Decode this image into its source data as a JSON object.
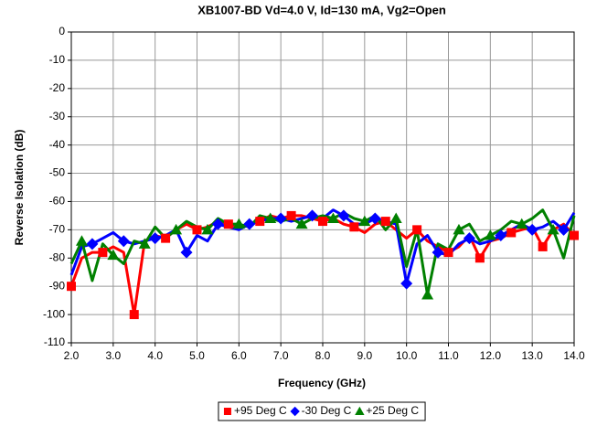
{
  "chart_data": {
    "type": "line",
    "title": "XB1007-BD Vd=4.0 V, Id=130 mA, Vg2=Open",
    "xlabel": "Frequency (GHz)",
    "ylabel": "Reverse Isolation (dB)",
    "x": [
      2.0,
      2.25,
      2.5,
      2.75,
      3.0,
      3.25,
      3.5,
      3.75,
      4.0,
      4.25,
      4.5,
      4.75,
      5.0,
      5.25,
      5.5,
      5.75,
      6.0,
      6.25,
      6.5,
      6.75,
      7.0,
      7.25,
      7.5,
      7.75,
      8.0,
      8.25,
      8.5,
      8.75,
      9.0,
      9.25,
      9.5,
      9.75,
      10.0,
      10.25,
      10.5,
      10.75,
      11.0,
      11.25,
      11.5,
      11.75,
      12.0,
      12.25,
      12.5,
      12.75,
      13.0,
      13.25,
      13.5,
      13.75,
      14.0
    ],
    "series": [
      {
        "name": "+95 Deg C",
        "color": "#ff0000",
        "marker": "square",
        "values": [
          -90,
          -80,
          -78,
          -78,
          -76,
          -78,
          -100,
          -74,
          -72,
          -73,
          -70,
          -68,
          -70,
          -69,
          -67,
          -68,
          -69,
          -68,
          -67,
          -65,
          -66,
          -65,
          -65,
          -66,
          -67,
          -66,
          -68,
          -69,
          -71,
          -68,
          -67,
          -70,
          -73,
          -70,
          -74,
          -76,
          -78,
          -76,
          -72,
          -80,
          -74,
          -73,
          -71,
          -70,
          -69,
          -76,
          -70,
          -68,
          -72
        ]
      },
      {
        "name": "-30 Deg C",
        "color": "#0000ff",
        "marker": "diamond",
        "values": [
          -86,
          -76,
          -75,
          -73,
          -71,
          -74,
          -75,
          -74,
          -73,
          -72,
          -70,
          -78,
          -72,
          -74,
          -68,
          -69,
          -70,
          -68,
          -67,
          -66,
          -66,
          -67,
          -66,
          -65,
          -66,
          -63,
          -65,
          -68,
          -68,
          -66,
          -67,
          -68,
          -89,
          -75,
          -72,
          -78,
          -79,
          -75,
          -73,
          -75,
          -74,
          -72,
          -70,
          -68,
          -70,
          -69,
          -67,
          -70,
          -64
        ]
      },
      {
        "name": "+25 Deg C",
        "color": "#008000",
        "marker": "triangle",
        "values": [
          -82,
          -74,
          -88,
          -75,
          -79,
          -82,
          -74,
          -75,
          -69,
          -73,
          -70,
          -67,
          -69,
          -70,
          -66,
          -68,
          -68,
          -69,
          -65,
          -66,
          -67,
          -66,
          -68,
          -66,
          -65,
          -66,
          -64,
          -66,
          -67,
          -65,
          -70,
          -66,
          -83,
          -70,
          -93,
          -75,
          -77,
          -70,
          -68,
          -74,
          -72,
          -70,
          -67,
          -68,
          -66,
          -63,
          -70,
          -80,
          -65
        ]
      }
    ],
    "xlim": [
      2,
      14
    ],
    "xticks": [
      {
        "value": 2,
        "label": "2.0"
      },
      {
        "value": 3,
        "label": "3.0"
      },
      {
        "value": 4,
        "label": "4.0"
      },
      {
        "value": 5,
        "label": "5.0"
      },
      {
        "value": 6,
        "label": "6.0"
      },
      {
        "value": 7,
        "label": "7.0"
      },
      {
        "value": 8,
        "label": "8.0"
      },
      {
        "value": 9,
        "label": "9.0"
      },
      {
        "value": 10,
        "label": "10.0"
      },
      {
        "value": 11,
        "label": "11.0"
      },
      {
        "value": 12,
        "label": "12.0"
      },
      {
        "value": 13,
        "label": "13.0"
      },
      {
        "value": 14,
        "label": "14.0"
      }
    ],
    "ylim": [
      -110,
      0
    ],
    "yticks": [
      0,
      -10,
      -20,
      -30,
      -40,
      -50,
      -60,
      -70,
      -80,
      -90,
      -100,
      -110
    ],
    "grid": true,
    "legend": "bottom"
  }
}
